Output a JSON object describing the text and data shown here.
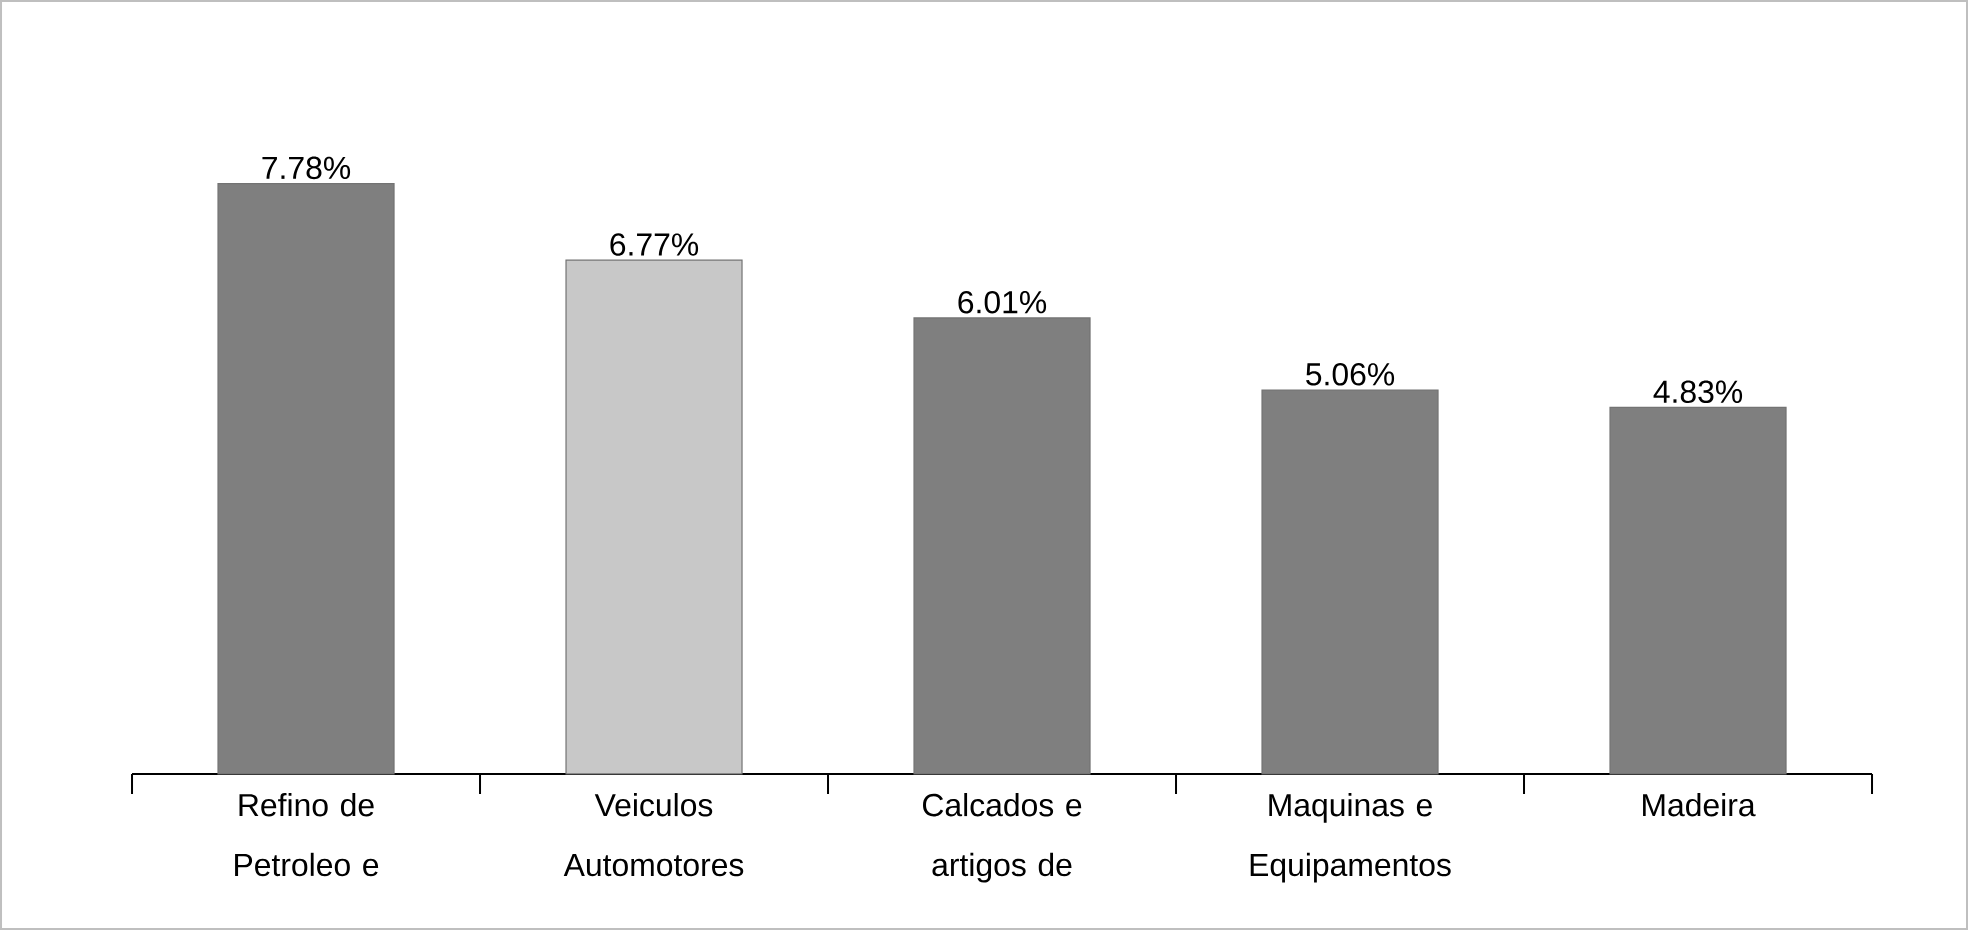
{
  "chart_data": {
    "type": "bar",
    "categories": [
      "Refino de Petroleo e",
      "Veiculos Automotores",
      "Calcados e artigos de",
      "Maquinas e Equipamentos",
      "Madeira"
    ],
    "values": [
      7.78,
      6.77,
      6.01,
      5.06,
      4.83
    ],
    "value_labels": [
      "7.78%",
      "6.77%",
      "6.01%",
      "5.06%",
      "4.83%"
    ],
    "colors": [
      "#7f7f7f",
      "#c8c8c8",
      "#7f7f7f",
      "#7f7f7f",
      "#7f7f7f"
    ]
  }
}
